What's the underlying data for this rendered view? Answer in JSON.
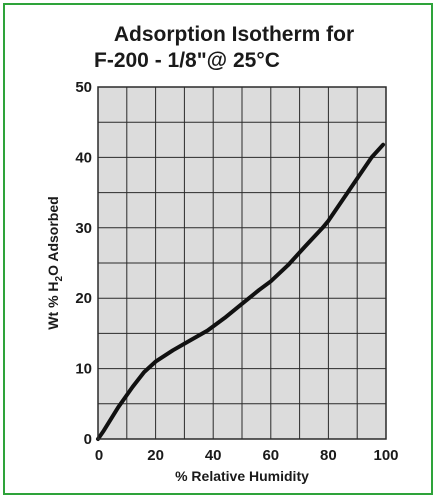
{
  "colors": {
    "frame": "#2ea33a",
    "plot_background": "#dcdcdc",
    "grid": "#2a2a2a",
    "curve": "#111111",
    "text": "#1a1a1a"
  },
  "chart_data": {
    "type": "line",
    "title_line1": "Adsorption Isotherm for",
    "title_line2": "F-200 - 1/8\"@ 25°C",
    "xlabel": "% Relative Humidity",
    "ylabel": {
      "prefix": "Wt  % H",
      "subscript": "2",
      "suffix": "O Adsorbed"
    },
    "xlim": [
      0,
      100
    ],
    "ylim": [
      0,
      50
    ],
    "x_ticks": [
      "0",
      "20",
      "40",
      "60",
      "80",
      "100"
    ],
    "y_ticks": [
      "0",
      "10",
      "20",
      "30",
      "40",
      "50"
    ],
    "grid": true,
    "series": [
      {
        "x": [
          0,
          2,
          7,
          12,
          16,
          20,
          26,
          32,
          38,
          44,
          50,
          56,
          60,
          66,
          72,
          78,
          80,
          85,
          90,
          95,
          99
        ],
        "y": [
          0,
          1.2,
          4.5,
          7.4,
          9.5,
          11.0,
          12.6,
          14.0,
          15.4,
          17.2,
          19.2,
          21.2,
          22.4,
          24.7,
          27.4,
          30.0,
          31.0,
          34.0,
          37.0,
          40.0,
          41.8
        ]
      }
    ]
  }
}
